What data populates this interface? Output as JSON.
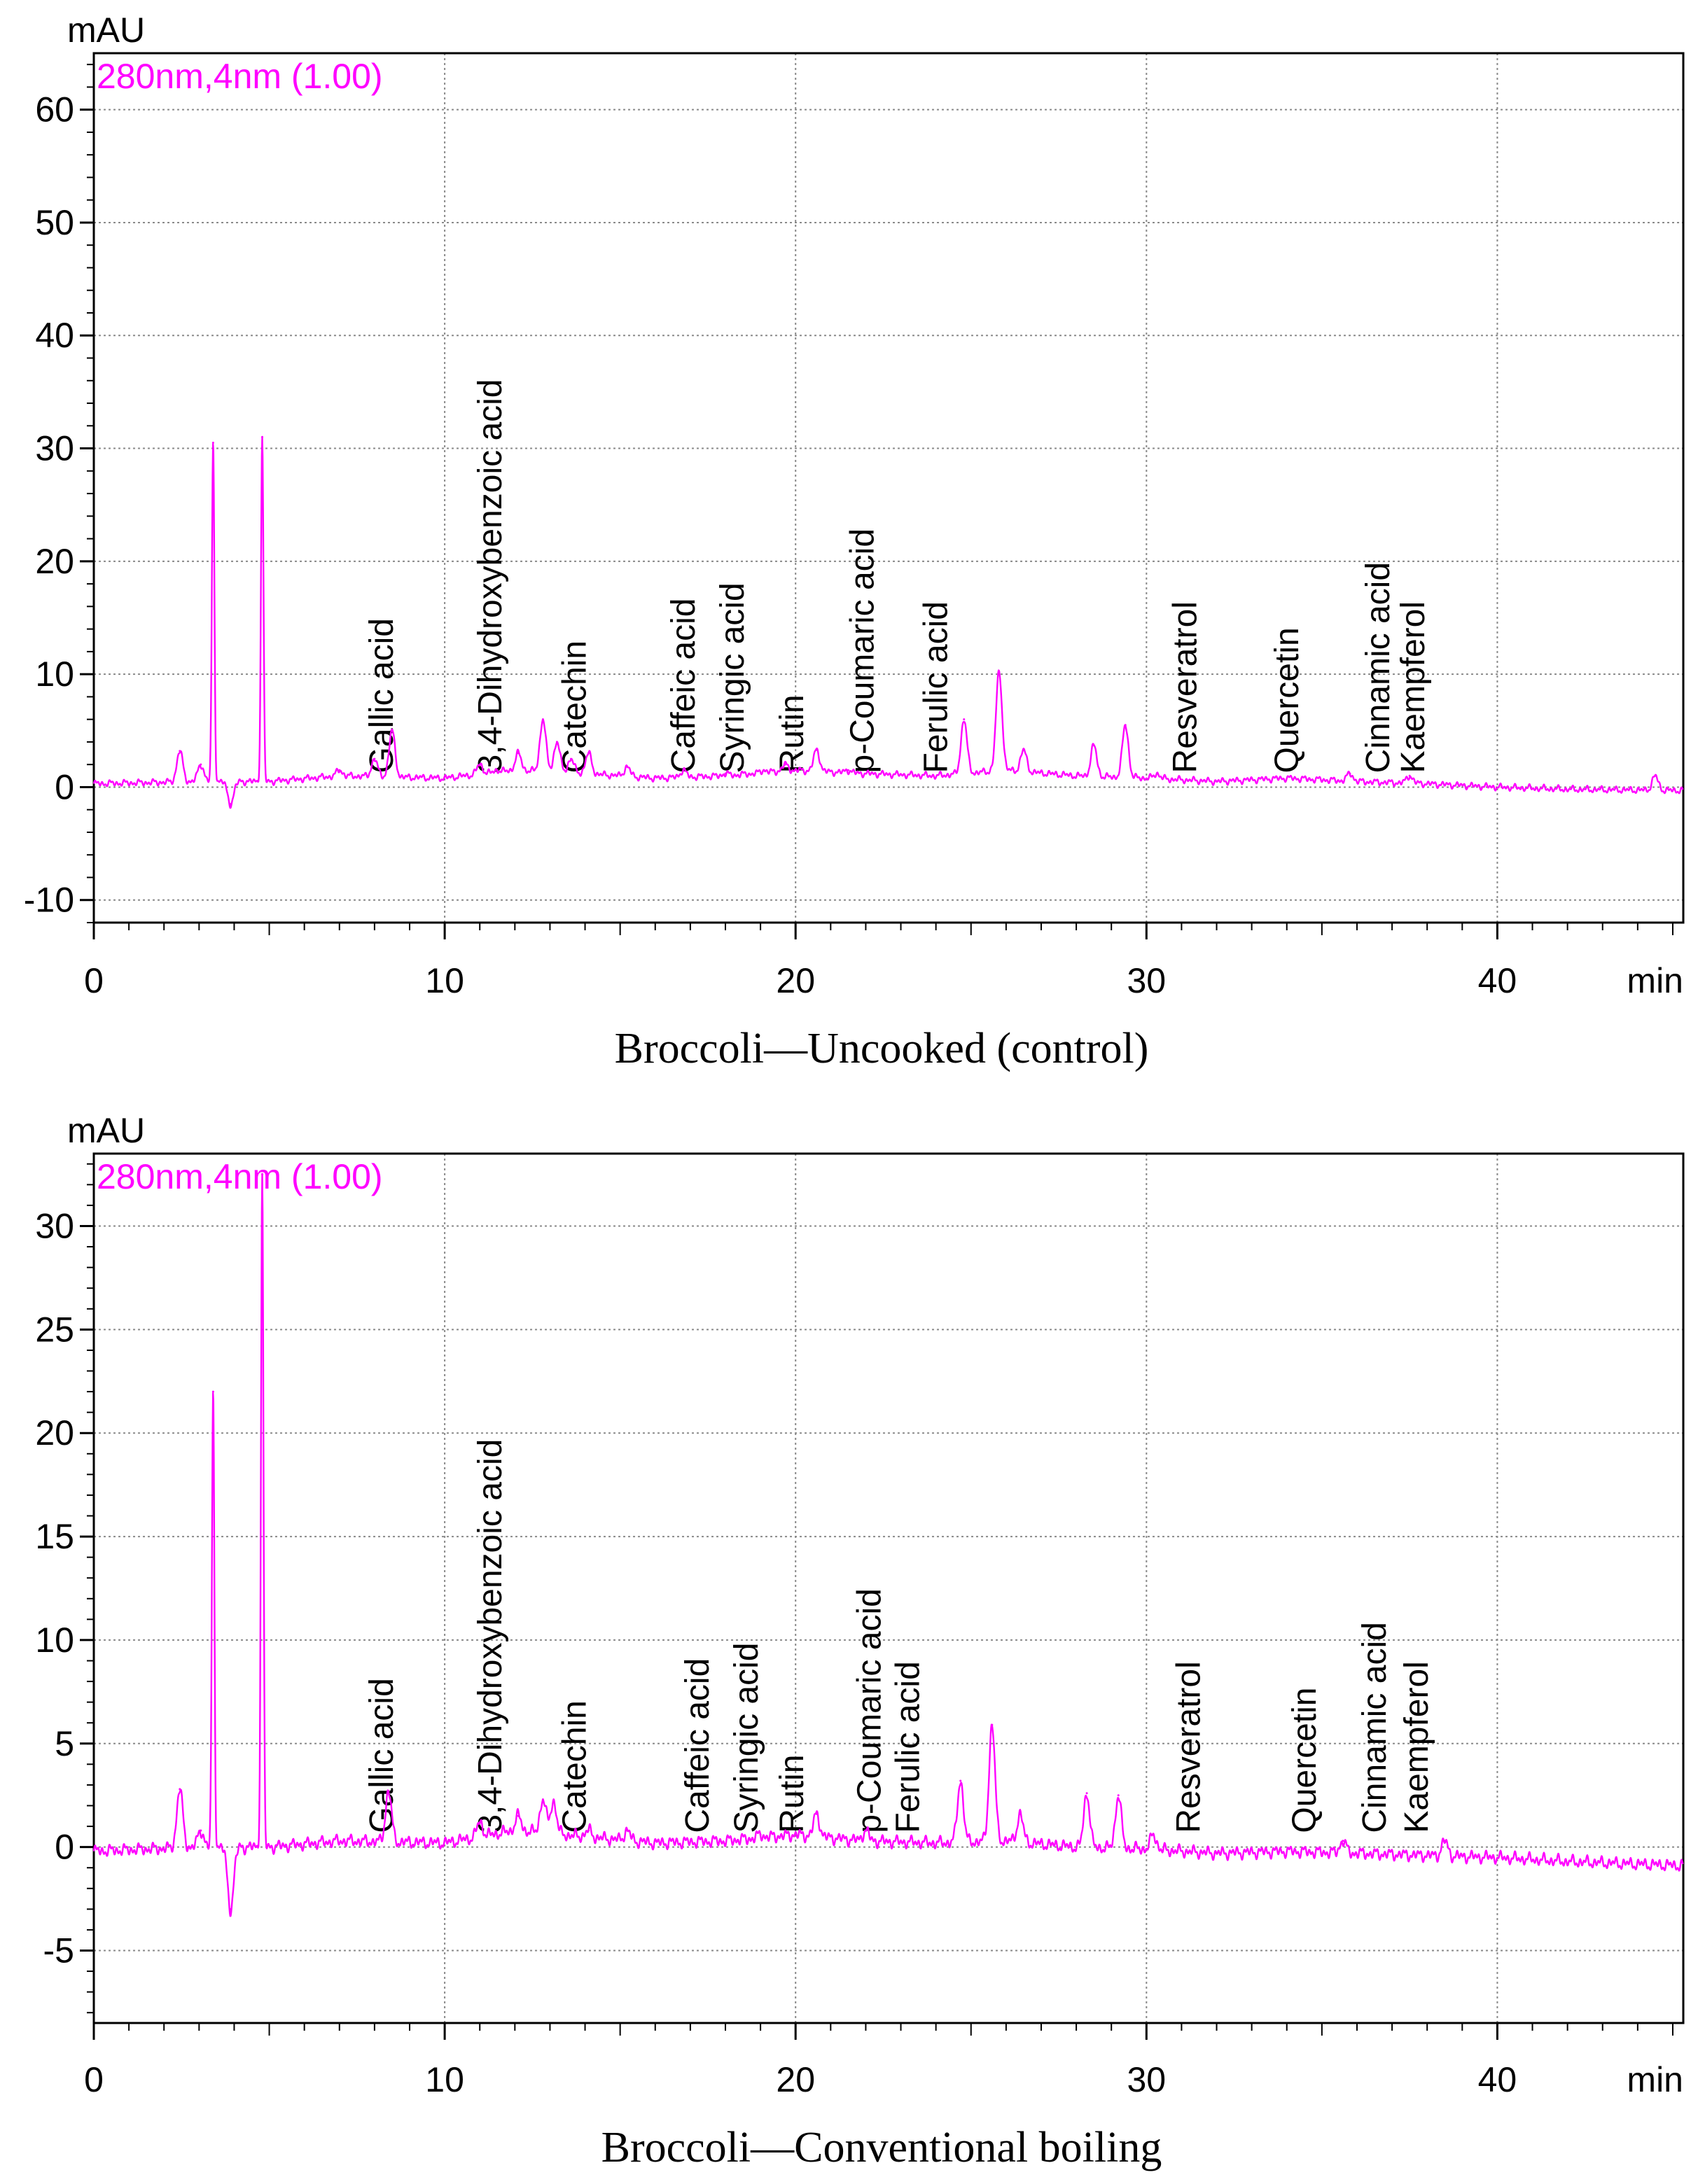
{
  "chart_data": [
    {
      "type": "line",
      "title": "Broccoli—Uncooked (control)",
      "ylabel": "mAU",
      "xlabel": "min",
      "wavelength_label": "280nm,4nm (1.00)",
      "x_range": [
        0,
        45.3
      ],
      "ylim": [
        -12,
        65
      ],
      "x_ticks": [
        0,
        10,
        20,
        30,
        40
      ],
      "x_tick_labels": [
        "0",
        "10",
        "20",
        "30",
        "40"
      ],
      "y_ticks": [
        -10,
        0,
        10,
        20,
        30,
        40,
        50,
        60
      ],
      "y_tick_labels": [
        "-10",
        "0",
        "10",
        "20",
        "30",
        "40",
        "50",
        "60"
      ],
      "grid": true,
      "line_color": "#ff00ff",
      "series": [
        {
          "name": "280nm,4nm (1.00)",
          "baseline": [
            [
              0,
              0.3
            ],
            [
              3.0,
              0.5
            ],
            [
              5.0,
              0.5
            ],
            [
              7.0,
              1.0
            ],
            [
              10.0,
              0.8
            ],
            [
              12.0,
              1.5
            ],
            [
              14.0,
              1.2
            ],
            [
              16.0,
              0.8
            ],
            [
              18.0,
              1.0
            ],
            [
              20.0,
              1.5
            ],
            [
              22.0,
              1.2
            ],
            [
              24.0,
              1.0
            ],
            [
              26.0,
              1.5
            ],
            [
              28.0,
              1.0
            ],
            [
              30.0,
              0.8
            ],
            [
              32.0,
              0.5
            ],
            [
              34.0,
              0.8
            ],
            [
              36.0,
              0.5
            ],
            [
              38.0,
              0.3
            ],
            [
              40.0,
              0.0
            ],
            [
              42.0,
              -0.2
            ],
            [
              45.3,
              -0.3
            ]
          ],
          "peaks": [
            [
              2.45,
              3.2
            ],
            [
              3.05,
              2.0
            ],
            [
              3.4,
              30.5
            ],
            [
              3.9,
              -1.5
            ],
            [
              4.8,
              31.0
            ],
            [
              7.0,
              1.5
            ],
            [
              8.0,
              2.5
            ],
            [
              8.5,
              5.0
            ],
            [
              11.0,
              2.0
            ],
            [
              11.5,
              1.5
            ],
            [
              12.1,
              3.0
            ],
            [
              12.8,
              6.0
            ],
            [
              13.2,
              4.0
            ],
            [
              13.6,
              2.5
            ],
            [
              14.1,
              3.0
            ],
            [
              15.2,
              1.8
            ],
            [
              16.8,
              1.5
            ],
            [
              18.0,
              1.2
            ],
            [
              19.1,
              1.5
            ],
            [
              19.7,
              2.0
            ],
            [
              20.6,
              3.3
            ],
            [
              21.5,
              1.5
            ],
            [
              24.8,
              6.0
            ],
            [
              25.8,
              10.2
            ],
            [
              26.5,
              3.3
            ],
            [
              28.5,
              3.7
            ],
            [
              29.4,
              5.5
            ],
            [
              30.3,
              1.2
            ],
            [
              35.8,
              1.2
            ],
            [
              37.5,
              1.0
            ],
            [
              44.5,
              1.0
            ]
          ]
        }
      ],
      "compounds": [
        {
          "name": "Gallic acid",
          "rt": 8.2
        },
        {
          "name": "3,4-Dihydroxybenzoic acid",
          "rt": 11.3
        },
        {
          "name": "Catechin",
          "rt": 13.7
        },
        {
          "name": "Caffeic acid",
          "rt": 16.8
        },
        {
          "name": "Syringic acid",
          "rt": 18.2
        },
        {
          "name": "Rutin",
          "rt": 19.9
        },
        {
          "name": "p-Coumaric acid",
          "rt": 21.9
        },
        {
          "name": "Ferulic acid",
          "rt": 24.0
        },
        {
          "name": "Resveratrol",
          "rt": 31.1
        },
        {
          "name": "Quercetin",
          "rt": 34.0
        },
        {
          "name": "Cinnamic acid",
          "rt": 36.6
        },
        {
          "name": "Kaempferol",
          "rt": 37.6
        }
      ]
    },
    {
      "type": "line",
      "title": "Broccoli—Conventional boiling",
      "ylabel": "mAU",
      "xlabel": "min",
      "wavelength_label": "280nm,4nm (1.00)",
      "x_range": [
        0,
        45.3
      ],
      "ylim": [
        -8.5,
        33.5
      ],
      "x_ticks": [
        0,
        10,
        20,
        30,
        40
      ],
      "x_tick_labels": [
        "0",
        "10",
        "20",
        "30",
        "40"
      ],
      "y_ticks": [
        -5,
        0,
        5,
        10,
        15,
        20,
        25,
        30
      ],
      "y_tick_labels": [
        "-5",
        "0",
        "5",
        "10",
        "15",
        "20",
        "25",
        "30"
      ],
      "grid": true,
      "line_color": "#ff00ff",
      "series": [
        {
          "name": "280nm,4nm (1.00)",
          "baseline": [
            [
              0,
              -0.2
            ],
            [
              3.0,
              0.0
            ],
            [
              5.0,
              0.0
            ],
            [
              7.0,
              0.3
            ],
            [
              10.0,
              0.2
            ],
            [
              12.0,
              0.8
            ],
            [
              14.0,
              0.5
            ],
            [
              16.0,
              0.2
            ],
            [
              18.0,
              0.3
            ],
            [
              20.0,
              0.6
            ],
            [
              22.0,
              0.3
            ],
            [
              24.0,
              0.2
            ],
            [
              26.0,
              0.3
            ],
            [
              28.0,
              0.0
            ],
            [
              30.0,
              -0.1
            ],
            [
              32.0,
              -0.3
            ],
            [
              34.0,
              -0.2
            ],
            [
              36.0,
              -0.3
            ],
            [
              38.0,
              -0.4
            ],
            [
              40.0,
              -0.5
            ],
            [
              42.0,
              -0.7
            ],
            [
              45.3,
              -0.9
            ]
          ],
          "peaks": [
            [
              2.45,
              2.8
            ],
            [
              3.05,
              0.8
            ],
            [
              3.4,
              22.0
            ],
            [
              3.9,
              -3.0
            ],
            [
              4.8,
              32.5
            ],
            [
              8.4,
              2.7
            ],
            [
              11.0,
              1.2
            ],
            [
              12.1,
              1.5
            ],
            [
              12.8,
              2.3
            ],
            [
              13.1,
              2.2
            ],
            [
              14.1,
              0.8
            ],
            [
              15.2,
              0.8
            ],
            [
              19.0,
              0.6
            ],
            [
              20.6,
              1.6
            ],
            [
              22.0,
              0.8
            ],
            [
              24.7,
              3.2
            ],
            [
              25.6,
              5.9
            ],
            [
              26.4,
              1.6
            ],
            [
              28.3,
              2.6
            ],
            [
              29.2,
              2.5
            ],
            [
              30.2,
              0.6
            ],
            [
              35.6,
              0.3
            ],
            [
              38.5,
              0.3
            ]
          ]
        }
      ],
      "compounds": [
        {
          "name": "Gallic acid",
          "rt": 8.2
        },
        {
          "name": "3,4-Dihydroxybenzoic acid",
          "rt": 11.3
        },
        {
          "name": "Catechin",
          "rt": 13.7
        },
        {
          "name": "Caffeic acid",
          "rt": 17.2
        },
        {
          "name": "Syringic acid",
          "rt": 18.6
        },
        {
          "name": "Rutin",
          "rt": 19.9
        },
        {
          "name": "p-Coumaric acid",
          "rt": 22.1
        },
        {
          "name": "Ferulic acid",
          "rt": 23.2
        },
        {
          "name": "Resveratrol",
          "rt": 31.2
        },
        {
          "name": "Quercetin",
          "rt": 34.5
        },
        {
          "name": "Cinnamic acid",
          "rt": 36.5
        },
        {
          "name": "Kaempferol",
          "rt": 37.7
        }
      ]
    }
  ]
}
